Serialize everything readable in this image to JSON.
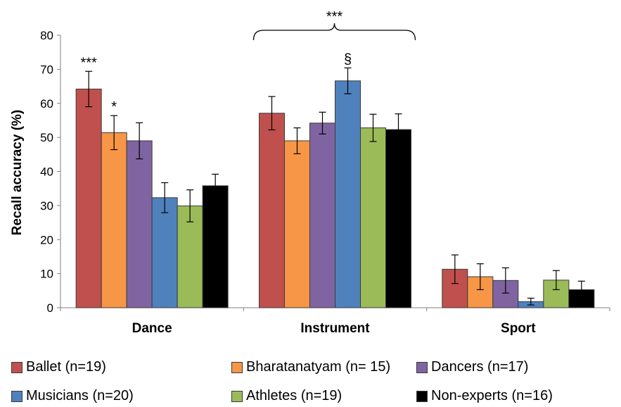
{
  "chart_data": {
    "type": "bar",
    "ylabel": "Recall accuracy (%)",
    "xlabel": "",
    "ylim": [
      0,
      80
    ],
    "yticks": [
      0,
      10,
      20,
      30,
      40,
      50,
      60,
      70,
      80
    ],
    "categories": [
      "Dance",
      "Instrument",
      "Sport"
    ],
    "series": [
      {
        "name": "Ballet (n=19)",
        "color": "#c0504d",
        "values": [
          64.2,
          57.1,
          11.3
        ],
        "errors": [
          5.2,
          4.9,
          4.2
        ]
      },
      {
        "name": "Bharatanatyam (n= 15)",
        "color": "#f79646",
        "values": [
          51.4,
          49.0,
          9.1
        ],
        "errors": [
          5.0,
          3.8,
          3.8
        ]
      },
      {
        "name": "Dancers (n=17)",
        "color": "#8064a2",
        "values": [
          49.0,
          54.2,
          8.0
        ],
        "errors": [
          5.3,
          3.2,
          3.7
        ]
      },
      {
        "name": "Musicians (n=20)",
        "color": "#4f81bd",
        "values": [
          32.3,
          66.6,
          1.8
        ],
        "errors": [
          4.4,
          3.8,
          1.0
        ]
      },
      {
        "name": "Athletes (n=19)",
        "color": "#9bbb59",
        "values": [
          29.9,
          52.8,
          8.1
        ],
        "errors": [
          4.7,
          4.0,
          2.8
        ]
      },
      {
        "name": "Non-experts (n=16)",
        "color": "#000000",
        "values": [
          35.8,
          52.3,
          5.3
        ],
        "errors": [
          3.4,
          4.6,
          2.5
        ]
      }
    ],
    "annotations": [
      {
        "text": "***",
        "category": 0,
        "series": 0
      },
      {
        "text": "*",
        "category": 0,
        "series": 1
      },
      {
        "text": "§",
        "category": 1,
        "series": 3
      },
      {
        "text": "***",
        "category": 1,
        "bracket": true
      }
    ],
    "legend_position": "bottom",
    "grid": false
  }
}
